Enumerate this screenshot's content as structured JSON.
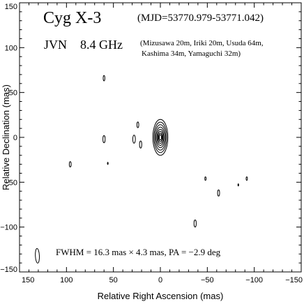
{
  "chart_data": {
    "type": "contour",
    "title": "Cyg X-3",
    "date_range": "(MJD=53770.979-53771.042)",
    "array": "JVN",
    "frequency": "8.4 GHz",
    "stations_line1": "(Mizusawa 20m, Iriki 20m, Usuda 64m,",
    "stations_line2": "Kashima 34m, Yamaguchi 32m)",
    "beam_text": "FWHM = 16.3 mas × 4.3 mas, PA = −2.9 deg",
    "xlabel": "Relative Right Ascension (mas)",
    "ylabel": "Relative Declination (mas)",
    "xlim": [
      150,
      -150
    ],
    "ylim": [
      -150,
      150
    ],
    "x_ticks": [
      "150",
      "100",
      "50",
      "0",
      "−50",
      "−100",
      "−150"
    ],
    "y_ticks": [
      "150",
      "100",
      "50",
      "0",
      "−50",
      "−100",
      "−150"
    ],
    "beam": {
      "ra": 131,
      "dec": -132,
      "major_fwhm_mas": 16.3,
      "minor_fwhm_mas": 4.3,
      "pa_deg": -2.9
    },
    "core": {
      "ra": 0,
      "dec": 0,
      "contour_radii_mas": [
        [
          8.0,
          20.0
        ],
        [
          6.8,
          17.0
        ],
        [
          5.7,
          14.2
        ],
        [
          4.6,
          11.5
        ],
        [
          3.6,
          9.0
        ],
        [
          2.7,
          6.8
        ],
        [
          1.9,
          4.8
        ],
        [
          1.2,
          3.0
        ]
      ]
    },
    "components": [
      {
        "ra": 60,
        "dec": 66,
        "rx": 0.9,
        "ry": 3.0
      },
      {
        "ra": 60,
        "dec": -2,
        "rx": 1.2,
        "ry": 4.0
      },
      {
        "ra": 96,
        "dec": -30,
        "rx": 1.0,
        "ry": 3.0
      },
      {
        "ra": 56,
        "dec": -29,
        "rx": 0.4,
        "ry": 1.2
      },
      {
        "ra": 24,
        "dec": 14,
        "rx": 1.0,
        "ry": 3.2
      },
      {
        "ra": 28,
        "dec": -2,
        "rx": 1.4,
        "ry": 4.5
      },
      {
        "ra": 21,
        "dec": -8,
        "rx": 1.2,
        "ry": 4.0
      },
      {
        "ra": -48,
        "dec": -46,
        "rx": 0.7,
        "ry": 2.0
      },
      {
        "ra": -62,
        "dec": -62,
        "rx": 1.1,
        "ry": 3.5
      },
      {
        "ra": -83,
        "dec": -53,
        "rx": 0.4,
        "ry": 1.2
      },
      {
        "ra": -92,
        "dec": -46,
        "rx": 0.7,
        "ry": 2.0
      },
      {
        "ra": -37,
        "dec": -96,
        "rx": 1.2,
        "ry": 4.0
      }
    ]
  }
}
